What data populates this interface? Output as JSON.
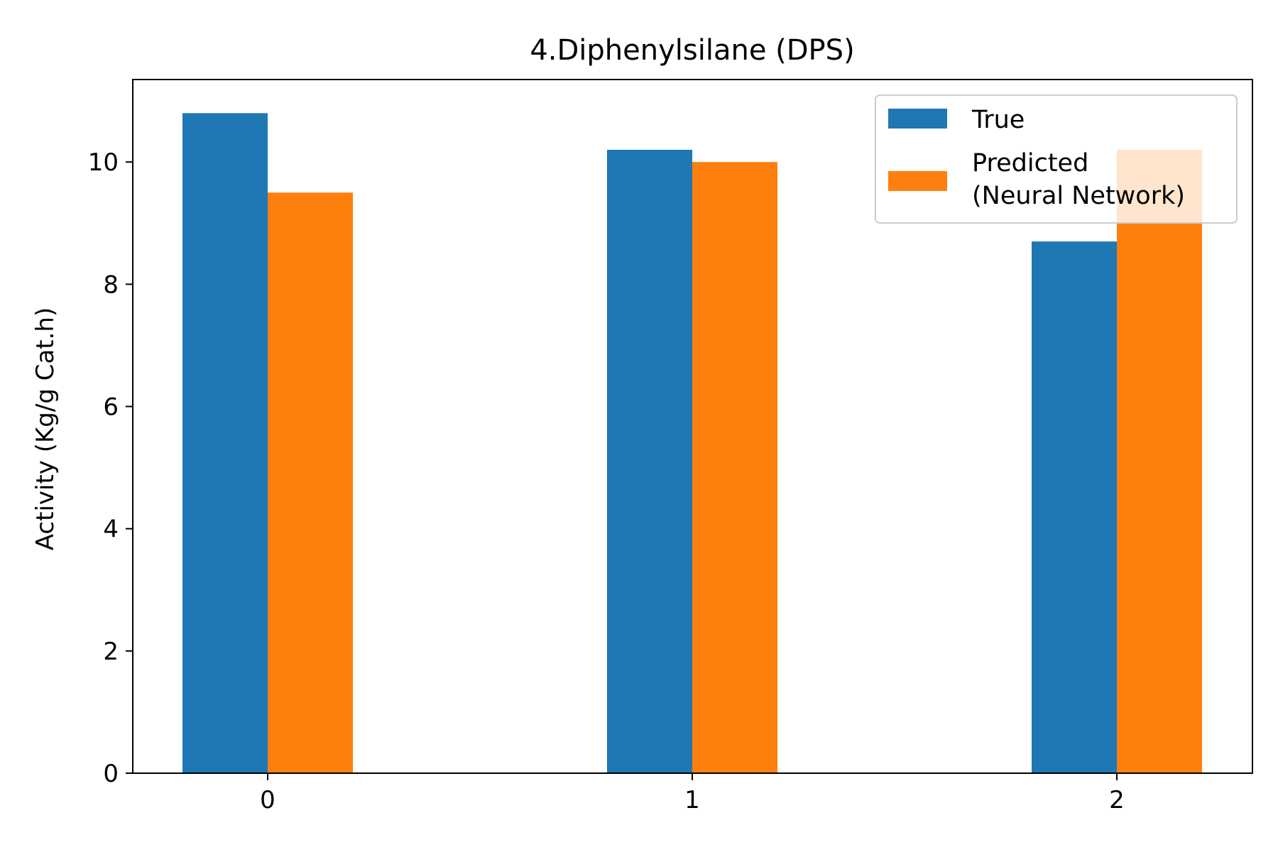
{
  "chart_data": {
    "type": "bar",
    "title": "4.Diphenylsilane (DPS)",
    "xlabel": "",
    "ylabel": "Activity (Kg/g Cat.h)",
    "categories": [
      "0",
      "1",
      "2"
    ],
    "series": [
      {
        "name": "True",
        "color": "#1f77b4",
        "values": [
          10.8,
          10.2,
          8.7
        ]
      },
      {
        "name": "Predicted\n(Neural Network)",
        "color": "#ff7f0e",
        "values": [
          9.5,
          10.0,
          10.2
        ]
      }
    ],
    "ylim": [
      0,
      11.35
    ],
    "yticks": [
      0,
      2,
      4,
      6,
      8,
      10
    ],
    "grid": false,
    "legend": "top-right"
  }
}
